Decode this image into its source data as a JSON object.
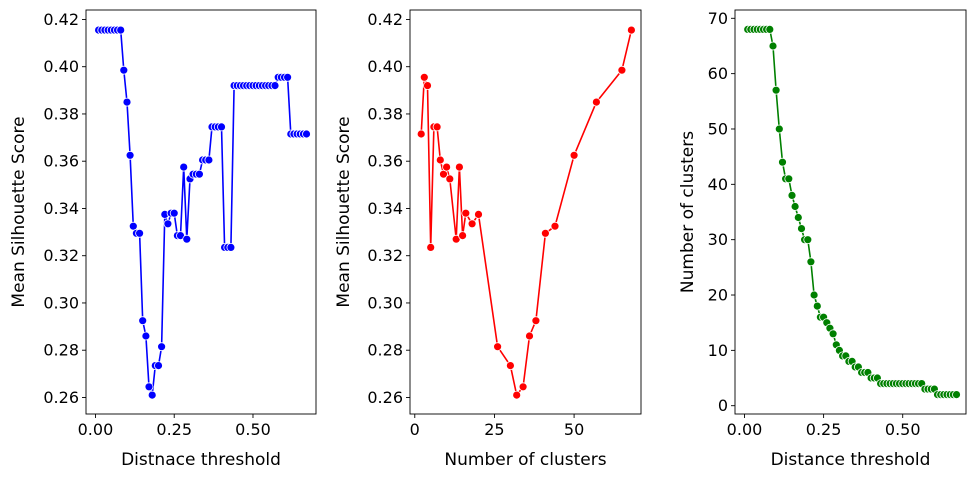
{
  "chart_data": [
    {
      "type": "line",
      "title": "",
      "xlabel": "Distnace threshold",
      "ylabel": "Mean Silhouette Score",
      "xlim": [
        -0.03,
        0.7
      ],
      "ylim": [
        0.253,
        0.424
      ],
      "xticks": [
        0.0,
        0.25,
        0.5
      ],
      "xtick_labels": [
        "0.00",
        "0.25",
        "0.50"
      ],
      "yticks": [
        0.26,
        0.28,
        0.3,
        0.32,
        0.34,
        0.36,
        0.38,
        0.4,
        0.42
      ],
      "ytick_labels": [
        "0.26",
        "0.28",
        "0.30",
        "0.32",
        "0.34",
        "0.36",
        "0.38",
        "0.40",
        "0.42"
      ],
      "color": "#0000ff",
      "marker": "circle",
      "grid": false,
      "series": [
        {
          "x": [
            0.01,
            0.02,
            0.03,
            0.04,
            0.05,
            0.06,
            0.07,
            0.08,
            0.09,
            0.1,
            0.11,
            0.12,
            0.13,
            0.14,
            0.15,
            0.16,
            0.17,
            0.18,
            0.19,
            0.2,
            0.21,
            0.22,
            0.23,
            0.24,
            0.25,
            0.26,
            0.27,
            0.28,
            0.29,
            0.3,
            0.31,
            0.32,
            0.33,
            0.34,
            0.35,
            0.36,
            0.37,
            0.38,
            0.39,
            0.4,
            0.41,
            0.42,
            0.43,
            0.44,
            0.45,
            0.46,
            0.47,
            0.48,
            0.49,
            0.5,
            0.51,
            0.52,
            0.53,
            0.54,
            0.55,
            0.56,
            0.57,
            0.58,
            0.59,
            0.6,
            0.61,
            0.62,
            0.63,
            0.64,
            0.65,
            0.66,
            0.67
          ],
          "y": [
            0.4155,
            0.4155,
            0.4155,
            0.4155,
            0.4155,
            0.4155,
            0.4155,
            0.4155,
            0.3985,
            0.385,
            0.3625,
            0.3325,
            0.3295,
            0.3295,
            0.2925,
            0.286,
            0.2645,
            0.261,
            0.2735,
            0.2735,
            0.2815,
            0.3375,
            0.3335,
            0.338,
            0.338,
            0.3285,
            0.3285,
            0.3575,
            0.327,
            0.3525,
            0.3545,
            0.3545,
            0.3545,
            0.3605,
            0.3605,
            0.3605,
            0.3745,
            0.3745,
            0.3745,
            0.3745,
            0.3235,
            0.3235,
            0.3235,
            0.392,
            0.392,
            0.392,
            0.392,
            0.392,
            0.392,
            0.392,
            0.392,
            0.392,
            0.392,
            0.392,
            0.392,
            0.392,
            0.392,
            0.3955,
            0.3955,
            0.3955,
            0.3955,
            0.3715,
            0.3715,
            0.3715,
            0.3715,
            0.3715,
            0.3715
          ]
        }
      ]
    },
    {
      "type": "line",
      "title": "",
      "xlabel": "Number of clusters",
      "ylabel": "Mean Silhouette Score",
      "xlim": [
        -1.5,
        71
      ],
      "ylim": [
        0.253,
        0.424
      ],
      "xticks": [
        0,
        25,
        50
      ],
      "xtick_labels": [
        "0",
        "25",
        "50"
      ],
      "yticks": [
        0.26,
        0.28,
        0.3,
        0.32,
        0.34,
        0.36,
        0.38,
        0.4,
        0.42
      ],
      "ytick_labels": [
        "0.26",
        "0.28",
        "0.30",
        "0.32",
        "0.34",
        "0.36",
        "0.38",
        "0.40",
        "0.42"
      ],
      "color": "#ff0000",
      "marker": "circle",
      "grid": false,
      "series": [
        {
          "x": [
            2,
            3,
            4,
            5,
            6,
            7,
            8,
            9,
            10,
            11,
            13,
            14,
            15,
            16,
            18,
            20,
            26,
            30,
            32,
            34,
            36,
            38,
            41,
            44,
            50,
            57,
            65,
            68
          ],
          "y": [
            0.3715,
            0.3955,
            0.392,
            0.3235,
            0.3745,
            0.3745,
            0.3605,
            0.3545,
            0.3575,
            0.3525,
            0.327,
            0.3575,
            0.3285,
            0.338,
            0.3335,
            0.3375,
            0.2815,
            0.2735,
            0.261,
            0.2645,
            0.286,
            0.2925,
            0.3295,
            0.3325,
            0.3625,
            0.385,
            0.3985,
            0.4155
          ]
        }
      ]
    },
    {
      "type": "line",
      "title": "",
      "xlabel": "Distance threshold",
      "ylabel": "Number of clusters",
      "xlim": [
        -0.03,
        0.7
      ],
      "ylim": [
        -1.5,
        71.5
      ],
      "xticks": [
        0.0,
        0.25,
        0.5
      ],
      "xtick_labels": [
        "0.00",
        "0.25",
        "0.50"
      ],
      "yticks": [
        0,
        10,
        20,
        30,
        40,
        50,
        60,
        70
      ],
      "ytick_labels": [
        "0",
        "10",
        "20",
        "30",
        "40",
        "50",
        "60",
        "70"
      ],
      "color": "#008000",
      "marker": "circle",
      "grid": false,
      "series": [
        {
          "x": [
            0.01,
            0.02,
            0.03,
            0.04,
            0.05,
            0.06,
            0.07,
            0.08,
            0.09,
            0.1,
            0.11,
            0.12,
            0.13,
            0.14,
            0.15,
            0.16,
            0.17,
            0.18,
            0.19,
            0.2,
            0.21,
            0.22,
            0.23,
            0.24,
            0.25,
            0.26,
            0.27,
            0.28,
            0.29,
            0.3,
            0.31,
            0.32,
            0.33,
            0.34,
            0.35,
            0.36,
            0.37,
            0.38,
            0.39,
            0.4,
            0.41,
            0.42,
            0.43,
            0.44,
            0.45,
            0.46,
            0.47,
            0.48,
            0.49,
            0.5,
            0.51,
            0.52,
            0.53,
            0.54,
            0.55,
            0.56,
            0.57,
            0.58,
            0.59,
            0.6,
            0.61,
            0.62,
            0.63,
            0.64,
            0.65,
            0.66,
            0.67
          ],
          "y": [
            68,
            68,
            68,
            68,
            68,
            68,
            68,
            68,
            65,
            57,
            50,
            44,
            41,
            41,
            38,
            36,
            34,
            32,
            30,
            30,
            26,
            20,
            18,
            16,
            16,
            15,
            14,
            13,
            11,
            10,
            9,
            9,
            8,
            8,
            7,
            7,
            6,
            6,
            6,
            5,
            5,
            5,
            4,
            4,
            4,
            4,
            4,
            4,
            4,
            4,
            4,
            4,
            4,
            4,
            4,
            4,
            3,
            3,
            3,
            3,
            2,
            2,
            2,
            2,
            2,
            2,
            2
          ]
        }
      ]
    }
  ]
}
